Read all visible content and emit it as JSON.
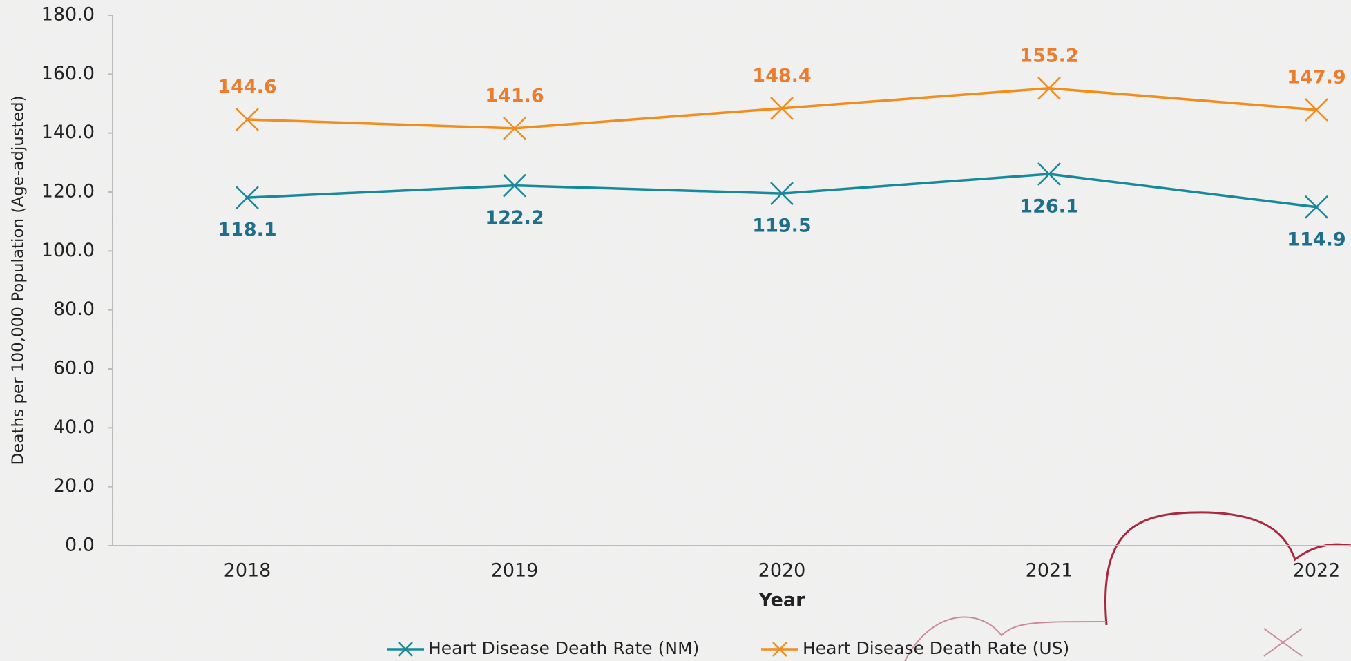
{
  "chart_data": {
    "type": "line",
    "x_label": "Year",
    "y_label": "Deaths per 100,000 Population (Age-adjusted)",
    "categories": [
      "2018",
      "2019",
      "2020",
      "2021",
      "2022"
    ],
    "series": [
      {
        "name": "Heart Disease Death Rate (NM)",
        "color": "#17899a",
        "label_color": "#1f6f8b",
        "label_position": "below",
        "values": [
          118.1,
          122.2,
          119.5,
          126.1,
          114.9
        ]
      },
      {
        "name": "Heart Disease Death Rate (US)",
        "color": "#f28c1a",
        "label_color": "#ec7d2e",
        "label_position": "above",
        "values": [
          144.6,
          141.6,
          148.4,
          155.2,
          147.9
        ]
      }
    ],
    "ylim": [
      0,
      180
    ],
    "yticks": [
      {
        "value": 0,
        "label": "0.0"
      },
      {
        "value": 20,
        "label": "20.0"
      },
      {
        "value": 40,
        "label": "40.0"
      },
      {
        "value": 60,
        "label": "60.0"
      },
      {
        "value": 80,
        "label": "80.0"
      },
      {
        "value": 100,
        "label": "100.0"
      },
      {
        "value": 120,
        "label": "120.0"
      },
      {
        "value": 140,
        "label": "140.0"
      },
      {
        "value": 160,
        "label": "160.0"
      },
      {
        "value": 180,
        "label": "180.0"
      }
    ],
    "grid": false,
    "legend": "bottom"
  }
}
